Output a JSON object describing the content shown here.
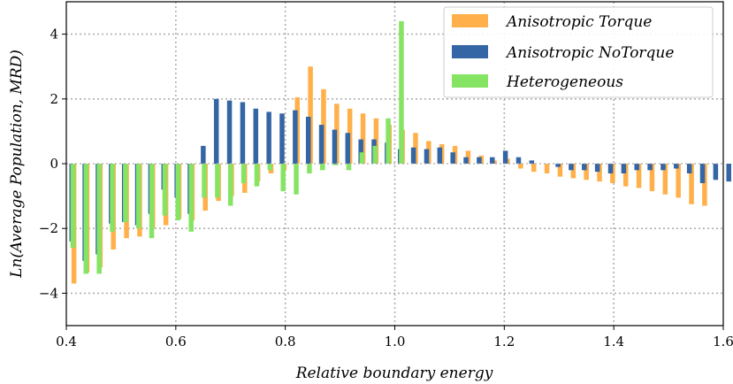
{
  "chart_data": {
    "type": "bar",
    "xlabel": "Relative boundary energy",
    "ylabel": "Ln(Average Population, MRD)",
    "xlim": [
      0.4,
      1.6
    ],
    "ylim": [
      -5,
      5
    ],
    "xticks": [
      0.4,
      0.6,
      0.8,
      1.0,
      1.2,
      1.4,
      1.6
    ],
    "xtick_labels": [
      "0.4",
      "0.6",
      "0.8",
      "1.0",
      "1.2",
      "1.4",
      "1.6"
    ],
    "yticks": [
      -4,
      -2,
      0,
      2,
      4
    ],
    "ytick_labels": [
      "−4",
      "−2",
      "0",
      "2",
      "4"
    ],
    "grid": true,
    "legend_position": "top-right",
    "bin_start": 0.4,
    "bin_width": 0.024,
    "series": [
      {
        "name": "Anisotropic Torque",
        "color": "#ffb04a",
        "values": [
          -3.7,
          -3.35,
          -3.2,
          -2.65,
          -2.3,
          -2.25,
          -2.0,
          -1.9,
          -1.7,
          -1.75,
          -1.45,
          -1.15,
          -1.0,
          -0.9,
          -0.55,
          -0.3,
          -0.2,
          2.05,
          3.0,
          2.3,
          1.85,
          1.7,
          1.55,
          1.4,
          1.2,
          1.05,
          0.95,
          0.7,
          0.6,
          0.55,
          0.4,
          0.25,
          0.1,
          0.15,
          -0.15,
          -0.25,
          -0.3,
          -0.4,
          -0.45,
          -0.5,
          -0.55,
          -0.6,
          -0.7,
          -0.75,
          -0.85,
          -0.95,
          -1.05,
          -1.25,
          -1.3
        ]
      },
      {
        "name": "Anisotropic NoTorque",
        "color": "#3465a4",
        "values": [
          -2.4,
          -3.0,
          -2.8,
          -1.85,
          -1.8,
          -1.9,
          -1.55,
          -0.8,
          -1.05,
          -1.55,
          0.55,
          2.0,
          1.95,
          1.9,
          1.7,
          1.6,
          1.55,
          1.65,
          1.45,
          1.2,
          1.05,
          0.95,
          0.75,
          0.75,
          0.65,
          0.45,
          0.5,
          0.45,
          0.5,
          0.35,
          0.2,
          0.2,
          0.2,
          0.4,
          0.2,
          0.1,
          0.0,
          -0.1,
          -0.2,
          -0.2,
          -0.25,
          -0.3,
          -0.3,
          -0.2,
          -0.2,
          -0.2,
          -0.15,
          -0.3,
          -0.6,
          -0.5,
          -0.55
        ]
      },
      {
        "name": "Heterogeneous",
        "color": "#85e463",
        "values": [
          -2.6,
          -3.4,
          -3.4,
          -2.1,
          -1.8,
          -2.0,
          -2.3,
          -1.6,
          -1.75,
          -2.1,
          -1.05,
          -1.05,
          -1.3,
          -0.6,
          -0.7,
          -0.2,
          -0.85,
          -0.95,
          -0.3,
          -0.2,
          -0.05,
          -0.2,
          0.35,
          0.55,
          1.4,
          4.4
        ]
      }
    ]
  }
}
